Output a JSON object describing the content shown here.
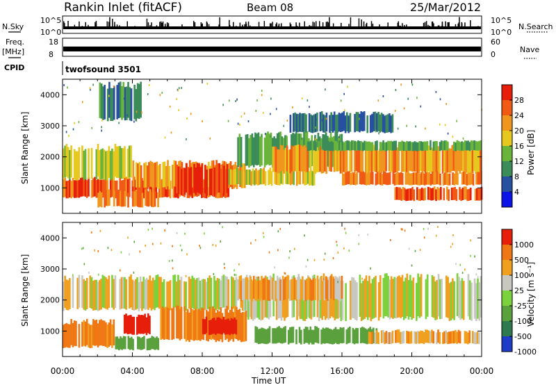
{
  "header": {
    "site": "Rankin Inlet (fitACF)",
    "beam": "Beam 08",
    "date": "25/Mar/2012"
  },
  "top_strips": {
    "nsky_label": "N.Sky",
    "nsearch_label": "N.Search",
    "freq_label_1": "Freq.",
    "freq_label_2": "[MHz]",
    "nave_label": "Nave",
    "cpid_label": "CPID",
    "cpid_value": "twofsound 3501",
    "nsky_ticks": [
      "10^5",
      "10^0"
    ],
    "nsearch_ticks": [
      "10^5",
      "10^0"
    ],
    "freq_ticks": [
      "18",
      "8"
    ],
    "nave_ticks": [
      "60",
      "0"
    ]
  },
  "panels": {
    "ylabel": "Slant Range [km]",
    "yticks": [
      "4000",
      "3000",
      "2000",
      "1000"
    ],
    "power_cbar_label": "Power [dB]",
    "power_cbar_ticks": [
      "28",
      "24",
      "20",
      "16",
      "12",
      "8",
      "4"
    ],
    "velocity_cbar_label": "Velocity [m s⁻¹]",
    "velocity_cbar_ticks": [
      "1000",
      "500",
      "100",
      "25",
      "-25",
      "-100",
      "-500",
      "-1000"
    ],
    "xlabel": "Time UT",
    "xticks": [
      "00:00",
      "04:00",
      "08:00",
      "12:00",
      "16:00",
      "20:00",
      "00:00"
    ]
  },
  "colors": {
    "power_scale": [
      "#0a14e6",
      "#2850a0",
      "#3c8c5a",
      "#6ab43c",
      "#e6c81e",
      "#f0961e",
      "#f05a14",
      "#e61e0a"
    ],
    "velocity_scale": [
      "#1e3cc8",
      "#2e7a4e",
      "#5aa03c",
      "#7cd23c",
      "#c8c8c0",
      "#f0a01e",
      "#f07814",
      "#e61e0a"
    ]
  },
  "chart_data": [
    {
      "type": "line",
      "title": "N.Sky / N.Search",
      "x_range_hours": [
        0,
        24
      ],
      "ylim_log10": [
        0,
        5
      ],
      "series": []
    },
    {
      "type": "line",
      "title": "Freq. [MHz] / Nave",
      "x_range_hours": [
        0,
        24
      ],
      "ylim_freq": [
        8,
        18
      ],
      "ylim_nave": [
        0,
        60
      ],
      "series": []
    },
    {
      "type": "heatmap",
      "quantity": "Power [dB]",
      "x_range_hours": [
        0,
        24
      ],
      "ylim_km": [
        180,
        4500
      ],
      "color_levels_dB": [
        4,
        8,
        12,
        16,
        20,
        24,
        28
      ],
      "regions": [
        {
          "t0": 0.0,
          "t1": 9.5,
          "r0": 700,
          "r1": 1300,
          "level_dB": 26
        },
        {
          "t0": 0.0,
          "t1": 4.0,
          "r0": 1300,
          "r1": 2300,
          "level_dB": 16
        },
        {
          "t0": 2.0,
          "t1": 5.5,
          "r0": 400,
          "r1": 900,
          "level_dB": 24
        },
        {
          "t0": 4.0,
          "t1": 10.5,
          "r0": 1000,
          "r1": 1800,
          "level_dB": 22
        },
        {
          "t0": 6.5,
          "t1": 9.5,
          "r0": 800,
          "r1": 1700,
          "level_dB": 28
        },
        {
          "t0": 9.5,
          "t1": 14.5,
          "r0": 1100,
          "r1": 1600,
          "level_dB": 18
        },
        {
          "t0": 10.0,
          "t1": 16.0,
          "r0": 1700,
          "r1": 2700,
          "level_dB": 12
        },
        {
          "t0": 12.0,
          "t1": 24.0,
          "r0": 1500,
          "r1": 2300,
          "level_dB": 22
        },
        {
          "t0": 14.0,
          "t1": 24.0,
          "r0": 2200,
          "r1": 2500,
          "level_dB": 12
        },
        {
          "t0": 16.0,
          "t1": 24.0,
          "r0": 1100,
          "r1": 1500,
          "level_dB": 24
        },
        {
          "t0": 19.0,
          "t1": 24.0,
          "r0": 600,
          "r1": 1000,
          "level_dB": 26
        },
        {
          "t0": 13.0,
          "t1": 19.0,
          "r0": 2800,
          "r1": 3400,
          "level_dB": 8
        },
        {
          "t0": 2.0,
          "t1": 4.5,
          "r0": 3200,
          "r1": 4300,
          "level_dB": 10
        }
      ]
    },
    {
      "type": "heatmap",
      "quantity": "Velocity [m s-1]",
      "x_range_hours": [
        0,
        24
      ],
      "ylim_km": [
        180,
        4500
      ],
      "color_levels_mps": [
        -1000,
        -500,
        -100,
        -25,
        25,
        100,
        500,
        1000
      ],
      "regions": [
        {
          "t0": 0.0,
          "t1": 10.5,
          "r0": 1700,
          "r1": 2700,
          "level_mps": 0
        },
        {
          "t0": 10.5,
          "t1": 24.0,
          "r0": 1400,
          "r1": 2700,
          "level_mps": 0
        },
        {
          "t0": 0.0,
          "t1": 3.0,
          "r0": 500,
          "r1": 1300,
          "level_mps": 150
        },
        {
          "t0": 3.5,
          "t1": 5.0,
          "r0": 900,
          "r1": 1500,
          "level_mps": 900
        },
        {
          "t0": 5.5,
          "t1": 10.5,
          "r0": 700,
          "r1": 1700,
          "level_mps": 150
        },
        {
          "t0": 8.0,
          "t1": 10.0,
          "r0": 900,
          "r1": 1400,
          "level_mps": 900
        },
        {
          "t0": 3.0,
          "t1": 5.5,
          "r0": 400,
          "r1": 800,
          "level_mps": -300
        },
        {
          "t0": 11.0,
          "t1": 18.0,
          "r0": 600,
          "r1": 1100,
          "level_mps": -300
        },
        {
          "t0": 17.5,
          "t1": 24.0,
          "r0": 600,
          "r1": 1000,
          "level_mps": 60
        },
        {
          "t0": 10.0,
          "t1": 16.0,
          "r0": 2000,
          "r1": 2700,
          "level_mps": 60
        }
      ]
    }
  ]
}
